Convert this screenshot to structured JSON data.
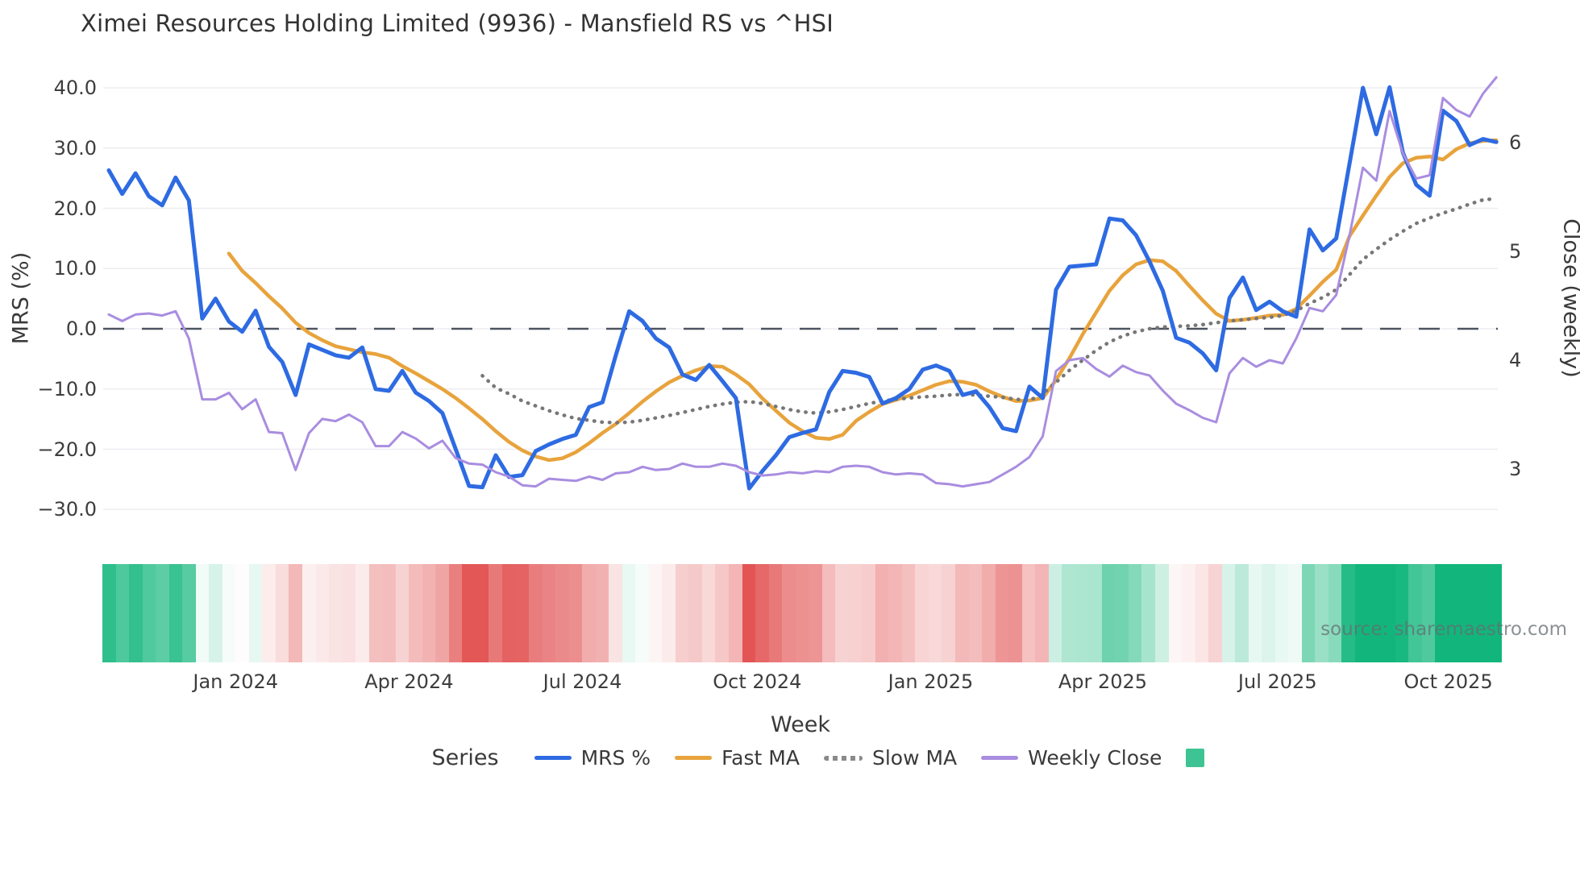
{
  "title": "Ximei Resources Holding Limited (9936) - Mansfield RS vs ^HSI",
  "source_note": "source: sharemaestro.com",
  "axes": {
    "left": {
      "label": "MRS (%)",
      "ticks": [
        {
          "label": "40.0",
          "value": 40
        },
        {
          "label": "30.0",
          "value": 30
        },
        {
          "label": "20.0",
          "value": 20
        },
        {
          "label": "10.0",
          "value": 10
        },
        {
          "label": "0.0",
          "value": 0
        },
        {
          "label": "−10.0",
          "value": -10
        },
        {
          "label": "−20.0",
          "value": -20
        },
        {
          "label": "−30.0",
          "value": -30
        }
      ]
    },
    "right": {
      "label": "Close (weekly)",
      "ticks": [
        {
          "label": "6",
          "value": 6
        },
        {
          "label": "5",
          "value": 5
        },
        {
          "label": "4",
          "value": 4
        },
        {
          "label": "3",
          "value": 3
        }
      ]
    },
    "x": {
      "label": "Week",
      "ticks": [
        {
          "label": "Jan 2024",
          "week": 9.5
        },
        {
          "label": "Apr 2024",
          "week": 22.5
        },
        {
          "label": "Jul 2024",
          "week": 35.5
        },
        {
          "label": "Oct 2024",
          "week": 48.6
        },
        {
          "label": "Jan 2025",
          "week": 61.6
        },
        {
          "label": "Apr 2025",
          "week": 74.5
        },
        {
          "label": "Jul 2025",
          "week": 87.6
        },
        {
          "label": "Oct 2025",
          "week": 100.4
        }
      ]
    }
  },
  "legend": {
    "title": "Series",
    "items": [
      {
        "label": "MRS %",
        "swatch": "line",
        "color": "#2e6be2"
      },
      {
        "label": "Fast MA",
        "swatch": "line",
        "color": "#e8a33c"
      },
      {
        "label": "Slow MA",
        "swatch": "dotted",
        "color": "#8a8a8a"
      },
      {
        "label": "Weekly Close",
        "swatch": "line",
        "color": "#a98de0"
      },
      {
        "label": "",
        "swatch": "square",
        "color": "#3ec492"
      }
    ]
  },
  "chart_data": {
    "type": "line",
    "title": "Ximei Resources Holding Limited (9936) - Mansfield RS vs ^HSI",
    "xlabel": "Week",
    "ylabel_left": "MRS (%)",
    "ylabel_right": "Close (weekly)",
    "x_start_date": "2023-10-27",
    "x_step_days": 7,
    "weeks": 105,
    "ylim_left": [
      -33.5,
      43.2
    ],
    "ylim_right": [
      2.7,
      6.68
    ],
    "grid": "horizontal",
    "legend_position": "bottom",
    "zero_dashed_line": true,
    "series": [
      {
        "name": "MRS %",
        "axis": "left",
        "color": "#2e6be2",
        "style": "solid",
        "width": 5,
        "values": [
          26.3,
          22.4,
          25.8,
          22.0,
          20.5,
          25.1,
          21.3,
          1.7,
          5.0,
          1.2,
          -0.5,
          3.0,
          -3.0,
          -5.5,
          -11.0,
          -2.6,
          -3.5,
          -4.4,
          -4.8,
          -3.1,
          -10.0,
          -10.3,
          -7.0,
          -10.6,
          -12.0,
          -14.0,
          -20.0,
          -26.1,
          -26.3,
          -21.0,
          -24.6,
          -24.3,
          -20.3,
          -19.2,
          -18.3,
          -17.6,
          -13.0,
          -12.2,
          -4.4,
          2.9,
          1.3,
          -1.6,
          -3.1,
          -7.6,
          -8.5,
          -6.0,
          -8.7,
          -11.5,
          -26.5,
          -23.6,
          -21.0,
          -18.0,
          -17.3,
          -16.7,
          -10.5,
          -7.0,
          -7.3,
          -8.0,
          -12.4,
          -11.5,
          -10.0,
          -6.8,
          -6.1,
          -7.0,
          -11.0,
          -10.4,
          -13.0,
          -16.5,
          -17.0,
          -9.6,
          -11.5,
          6.5,
          10.3,
          10.5,
          10.7,
          18.3,
          18.0,
          15.5,
          11.2,
          6.3,
          -1.5,
          -2.3,
          -4.1,
          -6.9,
          5.1,
          8.5,
          3.1,
          4.5,
          2.9,
          2.0,
          16.5,
          13.0,
          15.0,
          27.5,
          40.0,
          32.3,
          40.1,
          29.2,
          23.9,
          22.1,
          36.2,
          34.5,
          30.5,
          31.5,
          31.0
        ]
      },
      {
        "name": "Fast MA",
        "axis": "left",
        "color": "#e8a33c",
        "style": "solid",
        "width": 4.5,
        "values": [
          null,
          null,
          null,
          null,
          null,
          null,
          null,
          null,
          null,
          12.5,
          9.6,
          7.6,
          5.4,
          3.4,
          1.0,
          -0.7,
          -1.9,
          -2.9,
          -3.4,
          -3.9,
          -4.2,
          -4.8,
          -6.2,
          -7.4,
          -8.7,
          -10.0,
          -11.5,
          -13.2,
          -15.0,
          -17.0,
          -18.8,
          -20.2,
          -21.2,
          -21.8,
          -21.5,
          -20.5,
          -19.0,
          -17.3,
          -15.8,
          -14.0,
          -12.1,
          -10.4,
          -8.9,
          -7.8,
          -6.9,
          -6.2,
          -6.3,
          -7.6,
          -9.2,
          -11.6,
          -13.6,
          -15.6,
          -17.0,
          -18.1,
          -18.3,
          -17.6,
          -15.3,
          -13.8,
          -12.5,
          -11.8,
          -11.1,
          -10.2,
          -9.3,
          -8.7,
          -8.8,
          -9.3,
          -10.4,
          -11.3,
          -12.0,
          -11.9,
          -11.5,
          -8.5,
          -4.9,
          -0.9,
          2.7,
          6.3,
          8.9,
          10.7,
          11.4,
          11.2,
          9.6,
          7.1,
          4.7,
          2.5,
          1.3,
          1.5,
          1.8,
          2.2,
          2.3,
          3.3,
          5.5,
          7.8,
          9.8,
          15.4,
          18.8,
          22.1,
          25.2,
          27.5,
          28.4,
          28.6,
          28.1,
          29.8,
          30.8,
          31.2,
          31.3
        ]
      },
      {
        "name": "Slow MA",
        "axis": "left",
        "color": "#777777",
        "style": "dotted",
        "width": 4,
        "values": [
          null,
          null,
          null,
          null,
          null,
          null,
          null,
          null,
          null,
          null,
          null,
          null,
          null,
          null,
          null,
          null,
          null,
          null,
          null,
          null,
          null,
          null,
          null,
          null,
          null,
          null,
          null,
          null,
          -7.8,
          -9.8,
          -10.8,
          -12.0,
          -12.8,
          -13.6,
          -14.3,
          -14.9,
          -15.2,
          -15.5,
          -15.6,
          -15.5,
          -15.2,
          -14.8,
          -14.4,
          -13.9,
          -13.4,
          -12.9,
          -12.5,
          -12.2,
          -12.1,
          -12.4,
          -12.9,
          -13.4,
          -13.8,
          -14.0,
          -13.8,
          -13.4,
          -12.9,
          -12.4,
          -12.0,
          -11.7,
          -11.5,
          -11.3,
          -11.2,
          -11.0,
          -10.9,
          -11.0,
          -11.2,
          -11.4,
          -11.7,
          -11.9,
          -10.8,
          -8.9,
          -6.9,
          -5.2,
          -3.6,
          -2.2,
          -1.2,
          -0.5,
          0.0,
          0.3,
          0.4,
          0.5,
          0.7,
          1.0,
          1.3,
          1.5,
          1.7,
          1.9,
          2.2,
          3.0,
          4.2,
          5.2,
          6.5,
          9.0,
          11.5,
          13.2,
          14.8,
          16.2,
          17.5,
          18.4,
          19.2,
          19.9,
          20.7,
          21.4,
          21.6
        ]
      },
      {
        "name": "Weekly Close",
        "axis": "right",
        "color": "#a98de0",
        "style": "solid",
        "width": 3,
        "values": [
          4.42,
          4.36,
          4.42,
          4.43,
          4.41,
          4.45,
          4.2,
          3.64,
          3.64,
          3.7,
          3.55,
          3.64,
          3.34,
          3.33,
          2.99,
          3.33,
          3.46,
          3.44,
          3.5,
          3.43,
          3.21,
          3.21,
          3.34,
          3.28,
          3.19,
          3.26,
          3.1,
          3.05,
          3.04,
          2.97,
          2.93,
          2.85,
          2.84,
          2.91,
          2.9,
          2.89,
          2.93,
          2.9,
          2.96,
          2.97,
          3.02,
          2.99,
          3.0,
          3.05,
          3.02,
          3.02,
          3.05,
          3.03,
          2.97,
          2.94,
          2.95,
          2.97,
          2.96,
          2.98,
          2.97,
          3.02,
          3.03,
          3.02,
          2.97,
          2.95,
          2.96,
          2.95,
          2.87,
          2.86,
          2.84,
          2.86,
          2.88,
          2.95,
          3.02,
          3.11,
          3.3,
          3.9,
          4.0,
          4.02,
          3.92,
          3.85,
          3.95,
          3.89,
          3.86,
          3.72,
          3.6,
          3.54,
          3.47,
          3.43,
          3.88,
          4.02,
          3.94,
          4.0,
          3.97,
          4.2,
          4.48,
          4.45,
          4.6,
          5.15,
          5.77,
          5.65,
          6.29,
          5.9,
          5.67,
          5.7,
          6.41,
          6.3,
          6.24,
          6.45,
          6.6
        ]
      }
    ],
    "heatmap": {
      "based_on": "MRS %",
      "positive_color": "#12b67c",
      "negative_color": "#e25252",
      "positive_full_scale": 30,
      "negative_full_scale": 27
    }
  }
}
